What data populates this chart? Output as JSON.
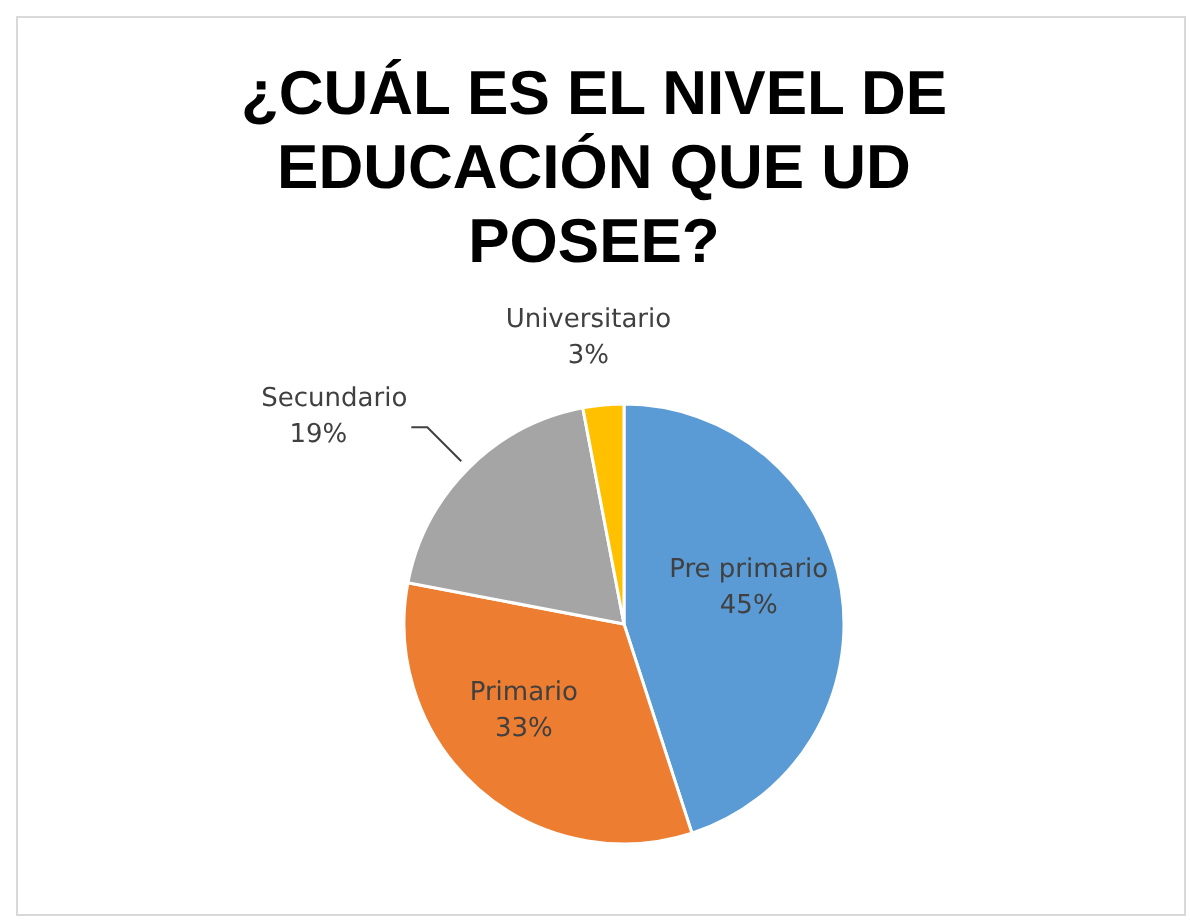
{
  "chart_data": {
    "type": "pie",
    "title": "¿CUÁL ES EL NIVEL DE EDUCACIÓN QUE UD POSEE?",
    "categories": [
      "Pre primario",
      "Primario",
      "Secundario",
      "Universitario"
    ],
    "values": [
      45,
      33,
      19,
      3
    ],
    "value_labels": [
      "45%",
      "33%",
      "19%",
      "3%"
    ],
    "colors": [
      "#5b9bd5",
      "#ed7d31",
      "#a5a5a5",
      "#ffc000"
    ],
    "legend": false
  }
}
